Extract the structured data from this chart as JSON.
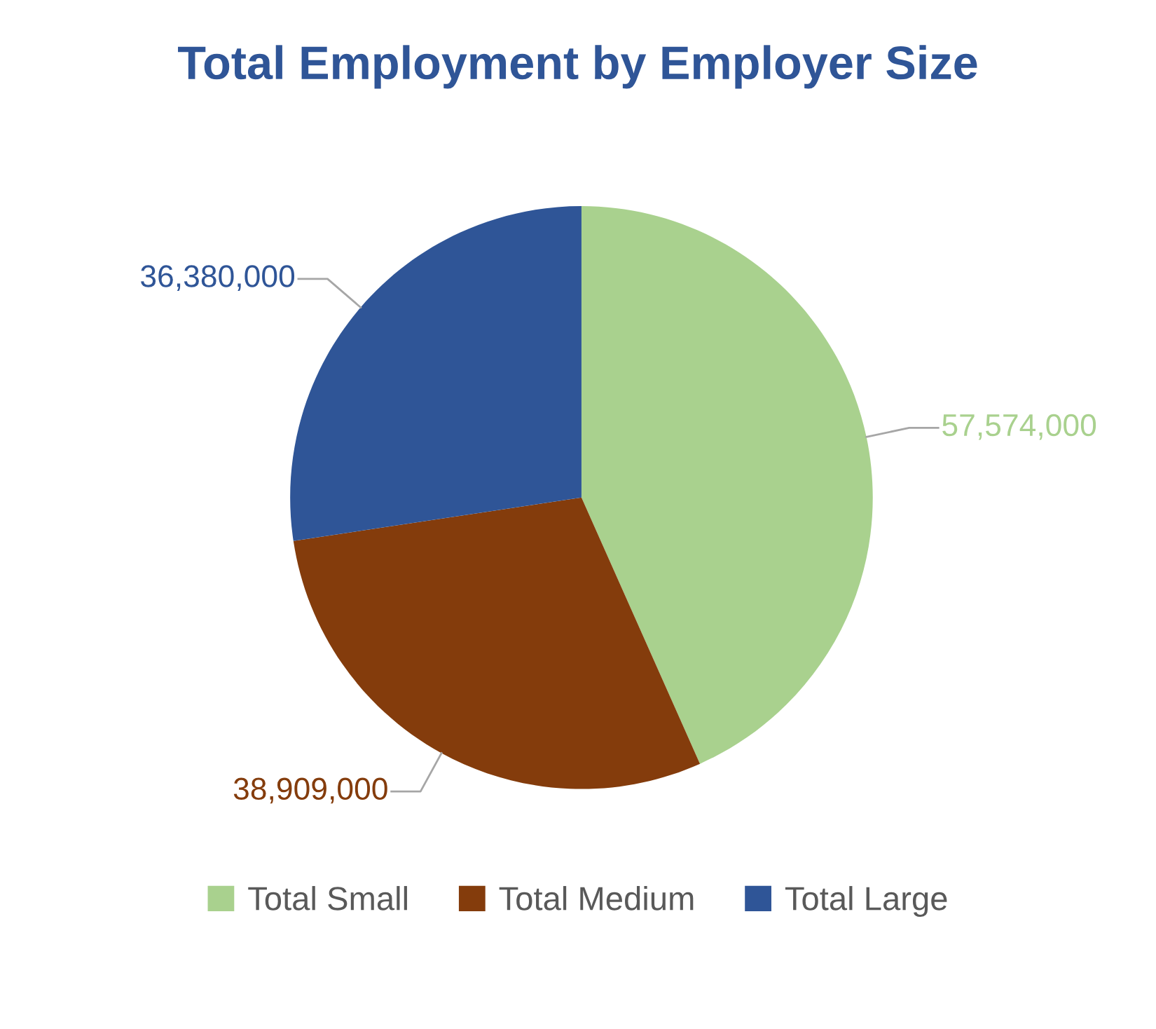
{
  "chart_data": {
    "type": "pie",
    "title": "Total Employment by Employer Size",
    "categories": [
      "Total Small",
      "Total Medium",
      "Total Large"
    ],
    "values": [
      57574000,
      38909000,
      36380000
    ],
    "colors": [
      "#a9d18e",
      "#843c0c",
      "#2f5597"
    ],
    "value_labels": [
      "57,574,000",
      "38,909,000",
      "36,380,000"
    ],
    "legend": "bottom"
  }
}
